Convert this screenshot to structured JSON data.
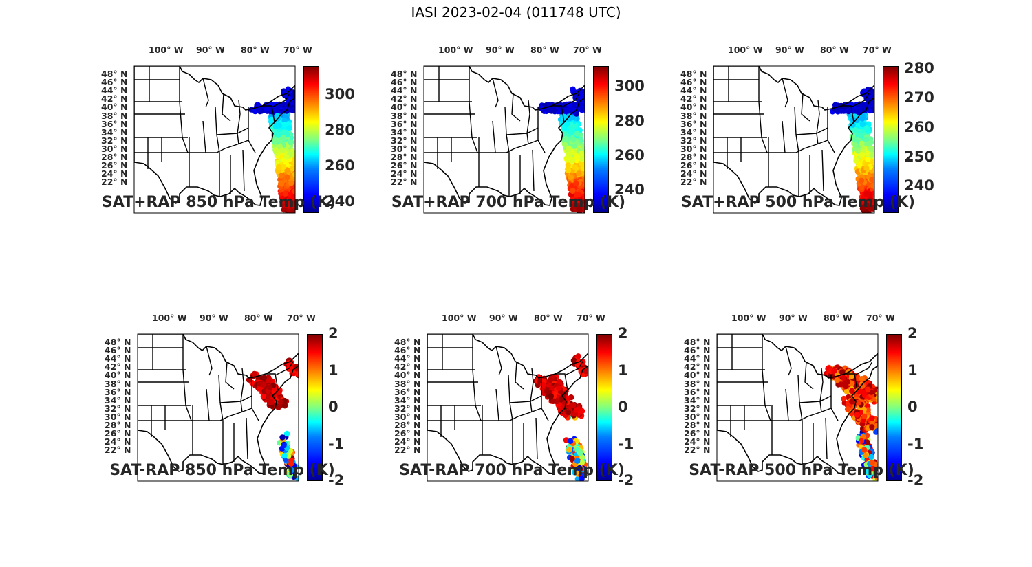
{
  "figure_title": "IASI 2023-02-04 (011748 UTC)",
  "lon_labels": [
    "100° W",
    "90° W",
    "80° W",
    "70° W"
  ],
  "lat_labels": [
    "48° N",
    "46° N",
    "44° N",
    "42° N",
    "40° N",
    "38° N",
    "36° N",
    "34° N",
    "32° N",
    "30° N",
    "28° N",
    "26° N",
    "24° N",
    "22° N"
  ],
  "panels": [
    {
      "title": "SAT+RAP 850 hPa Temp (K)",
      "colorbar_ticks": [
        "300",
        "280",
        "260",
        "240"
      ],
      "colorbar_range": [
        234,
        316
      ]
    },
    {
      "title": "SAT+RAP 700 hPa Temp (K)",
      "colorbar_ticks": [
        "300",
        "280",
        "260",
        "240"
      ],
      "colorbar_range": [
        227,
        312
      ]
    },
    {
      "title": "SAT+RAP 500 hPa Temp (K)",
      "colorbar_ticks": [
        "280",
        "270",
        "260",
        "250",
        "240"
      ],
      "colorbar_range": [
        231,
        281
      ]
    },
    {
      "title": "SAT-RAP 850 hPa Temp (K)",
      "colorbar_ticks": [
        "2",
        "1",
        "0",
        "-1",
        "-2"
      ],
      "colorbar_range": [
        -2,
        2
      ]
    },
    {
      "title": "SAT-RAP 700 hPa Temp (K)",
      "colorbar_ticks": [
        "2",
        "1",
        "0",
        "-1",
        "-2"
      ],
      "colorbar_range": [
        -2,
        2
      ]
    },
    {
      "title": "SAT-RAP 500 hPa Temp (K)",
      "colorbar_ticks": [
        "2",
        "1",
        "0",
        "-1",
        "-2"
      ],
      "colorbar_range": [
        -2,
        2
      ]
    }
  ],
  "colors": {
    "colormap": "jet",
    "outline": "#000000",
    "text": "#262626"
  }
}
